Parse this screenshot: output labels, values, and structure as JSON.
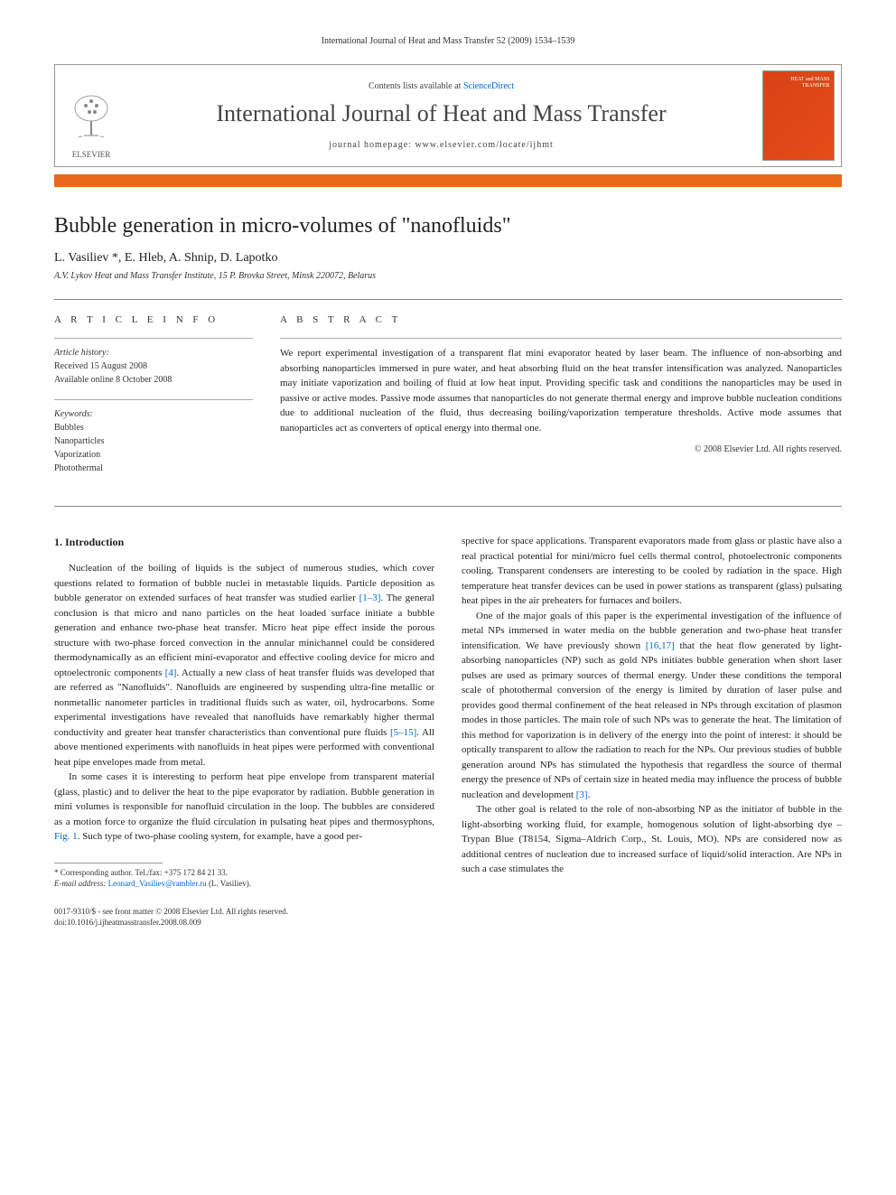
{
  "header": {
    "citation": "International Journal of Heat and Mass Transfer 52 (2009) 1534–1539"
  },
  "masthead": {
    "contents_prefix": "Contents lists available at ",
    "contents_link": "ScienceDirect",
    "journal": "International Journal of Heat and Mass Transfer",
    "homepage_label": "journal homepage: ",
    "homepage_url": "www.elsevier.com/locate/ijhmt",
    "publisher": "ELSEVIER",
    "cover_text": "HEAT and MASS TRANSFER"
  },
  "article": {
    "title": "Bubble generation in micro-volumes of \"nanofluids\"",
    "authors": "L. Vasiliev *, E. Hleb, A. Shnip, D. Lapotko",
    "affiliation": "A.V. Lykov Heat and Mass Transfer Institute, 15 P. Brovka Street, Minsk 220072, Belarus"
  },
  "info": {
    "section_label": "A R T I C L E   I N F O",
    "history_label": "Article history:",
    "received": "Received 15 August 2008",
    "online": "Available online 8 October 2008",
    "keywords_label": "Keywords:",
    "keywords": [
      "Bubbles",
      "Nanoparticles",
      "Vaporization",
      "Photothermal"
    ]
  },
  "abstract": {
    "section_label": "A B S T R A C T",
    "text": "We report experimental investigation of a transparent flat mini evaporator heated by laser beam. The influence of non-absorbing and absorbing nanoparticles immersed in pure water, and heat absorbing fluid on the heat transfer intensification was analyzed. Nanoparticles may initiate vaporization and boiling of fluid at low heat input. Providing specific task and conditions the nanoparticles may be used in passive or active modes. Passive mode assumes that nanoparticles do not generate thermal energy and improve bubble nucleation conditions due to additional nucleation of the fluid, thus decreasing boiling/vaporization temperature thresholds. Active mode assumes that nanoparticles act as converters of optical energy into thermal one.",
    "copyright": "© 2008 Elsevier Ltd. All rights reserved."
  },
  "body": {
    "heading": "1. Introduction",
    "left_paragraphs": [
      "Nucleation of the boiling of liquids is the subject of numerous studies, which cover questions related to formation of bubble nuclei in metastable liquids. Particle deposition as bubble generator on extended surfaces of heat transfer was studied earlier [1–3]. The general conclusion is that micro and nano particles on the heat loaded surface initiate a bubble generation and enhance two-phase heat transfer. Micro heat pipe effect inside the porous structure with two-phase forced convection in the annular minichannel could be considered thermodynamically as an efficient mini-evaporator and effective cooling device for micro and optoelectronic components [4]. Actually a new class of heat transfer fluids was developed that are referred as \"Nanofluids\". Nanofluids are engineered by suspending ultra-fine metallic or nonmetallic nanometer particles in traditional fluids such as water, oil, hydrocarbons. Some experimental investigations have revealed that nanofluids have remarkably higher thermal conductivity and greater heat transfer characteristics than conventional pure fluids [5–15]. All above mentioned experiments with nanofluids in heat pipes were performed with conventional heat pipe envelopes made from metal.",
      "In some cases it is interesting to perform heat pipe envelope from transparent material (glass, plastic) and to deliver the heat to the pipe evaporator by radiation. Bubble generation in mini volumes is responsible for nanofluid circulation in the loop. The bubbles are considered as a motion force to organize the fluid circulation in pulsating heat pipes and thermosyphons, Fig. 1. Such type of two-phase cooling system, for example, have a good per-"
    ],
    "right_paragraphs": [
      "spective for space applications. Transparent evaporators made from glass or plastic have also a real practical potential for mini/micro fuel cells thermal control, photoelectronic components cooling. Transparent condensers are interesting to be cooled by radiation in the space. High temperature heat transfer devices can be used in power stations as transparent (glass) pulsating heat pipes in the air preheaters for furnaces and boilers.",
      "One of the major goals of this paper is the experimental investigation of the influence of metal NPs immersed in water media on the bubble generation and two-phase heat transfer intensification. We have previously shown [16,17] that the heat flow generated by light-absorbing nanoparticles (NP) such as gold NPs initiates bubble generation when short laser pulses are used as primary sources of thermal energy. Under these conditions the temporal scale of photothermal conversion of the energy is limited by duration of laser pulse and provides good thermal confinement of the heat released in NPs through excitation of plasmon modes in those particles. The main role of such NPs was to generate the heat. The limitation of this method for vaporization is in delivery of the energy into the point of interest: it should be optically transparent to allow the radiation to reach for the NPs. Our previous studies of bubble generation around NPs has stimulated the hypothesis that regardless the source of thermal energy the presence of NPs of certain size in heated media may influence the process of bubble nucleation and development [3].",
      "The other goal is related to the role of non-absorbing NP as the initiator of bubble in the light-absorbing working fluid, for example, homogenous solution of light-absorbing dye –Trypan Blue (T8154, Sigma–Aldrich Corp., St. Louis, MO). NPs are considered now as additional centres of nucleation due to increased surface of liquid/solid interaction. Are NPs in such a case stimulates the"
    ]
  },
  "footnote": {
    "corresponding": "* Corresponding author. Tel./fax: +375 172 84 21 33.",
    "email_label": "E-mail address:",
    "email": "Leonard_Vasiliev@rambler.ru",
    "email_suffix": "(L. Vasiliev)."
  },
  "footer": {
    "issn": "0017-9310/$ - see front matter © 2008 Elsevier Ltd. All rights reserved.",
    "doi": "doi:10.1016/j.ijheatmasstransfer.2008.08.009"
  }
}
